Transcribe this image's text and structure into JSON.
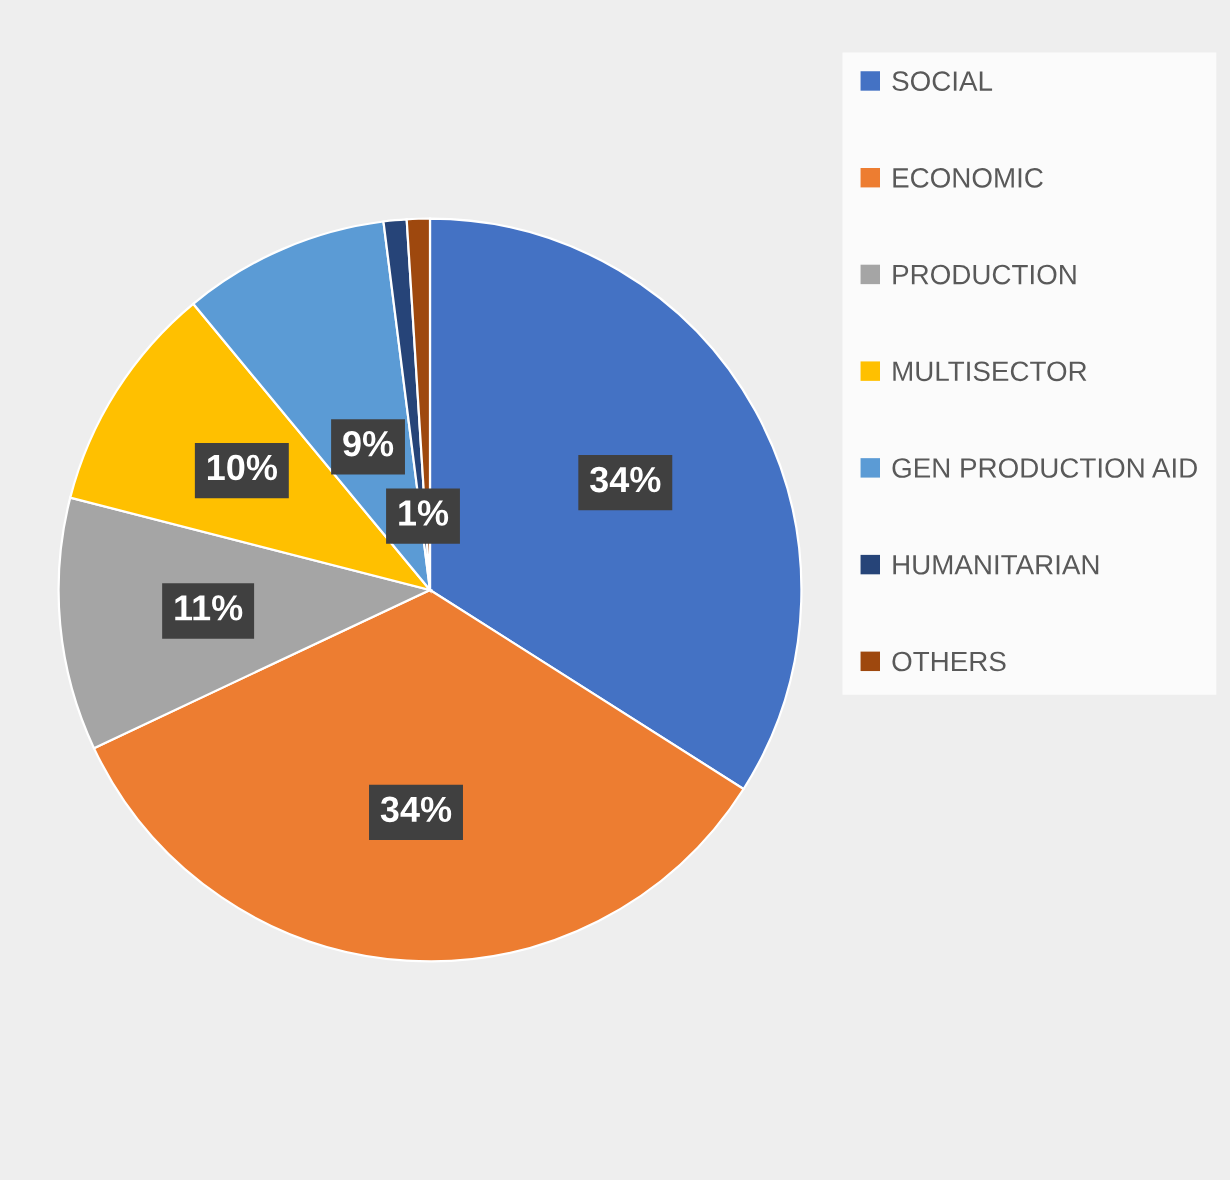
{
  "chart_data": {
    "type": "pie",
    "categories": [
      "SOCIAL",
      "ECONOMIC",
      "PRODUCTION",
      "MULTISECTOR",
      "GEN PRODUCTION AID",
      "HUMANITARIAN",
      "OTHERS"
    ],
    "values": [
      34,
      34,
      11,
      10,
      9,
      1,
      1
    ],
    "value_labels": [
      "34%",
      "34%",
      "11%",
      "10%",
      "9%",
      "1%",
      null
    ],
    "colors": [
      "#4472c4",
      "#ed7d31",
      "#a5a5a5",
      "#ffc000",
      "#5b9bd5",
      "#264478",
      "#9e480e"
    ],
    "legend": "right"
  }
}
